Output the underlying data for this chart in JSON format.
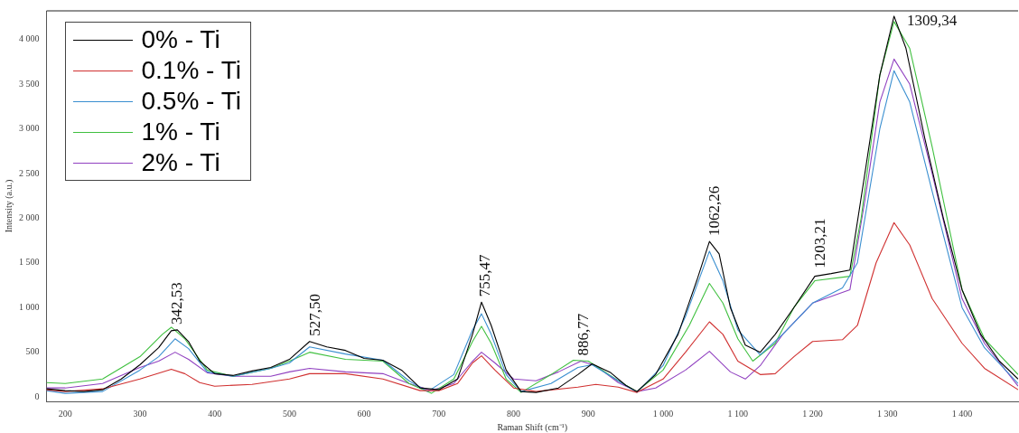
{
  "chart_data": {
    "type": "line",
    "xlabel": "Raman Shift (cm⁻¹)",
    "ylabel": "Intensity (a.u.)",
    "xlim": [
      175,
      1475
    ],
    "xticks": [
      200,
      300,
      400,
      500,
      600,
      700,
      800,
      900,
      {
        "value": 1000,
        "label": "1 000"
      },
      {
        "value": 1100,
        "label": "1 100"
      },
      {
        "value": 1200,
        "label": "1 200"
      },
      {
        "value": 1300,
        "label": "1 300"
      },
      {
        "value": 1400,
        "label": "1 400"
      }
    ],
    "ylim": [
      -50,
      4320
    ],
    "yticks": [
      0,
      500,
      {
        "value": 1000,
        "label": "1 000"
      },
      {
        "value": 1500,
        "label": "1 500"
      },
      {
        "value": 2000,
        "label": "2 000"
      },
      {
        "value": 2500,
        "label": "2 500"
      },
      {
        "value": 3000,
        "label": "3 000"
      },
      {
        "value": 3500,
        "label": "3 500"
      },
      {
        "value": 4000,
        "label": "4 000"
      }
    ],
    "grid": false,
    "legend": "top left",
    "marker": "none",
    "line_style": "solid",
    "series": [
      {
        "name": "0% - Ti",
        "color": "#000000",
        "x": [
          175,
          200,
          225,
          250,
          275,
          300,
          325,
          342,
          350,
          365,
          380,
          400,
          425,
          450,
          475,
          500,
          527,
          550,
          575,
          600,
          625,
          650,
          675,
          700,
          725,
          745,
          757,
          770,
          790,
          810,
          830,
          860,
          886,
          905,
          930,
          950,
          965,
          990,
          1020,
          1045,
          1062,
          1075,
          1090,
          1110,
          1130,
          1150,
          1175,
          1203,
          1225,
          1250,
          1270,
          1290,
          1309,
          1325,
          1350,
          1375,
          1400,
          1425,
          1450,
          1475
        ],
        "values": [
          90,
          70,
          60,
          80,
          200,
          360,
          550,
          740,
          750,
          620,
          400,
          260,
          240,
          290,
          330,
          420,
          620,
          560,
          520,
          430,
          410,
          300,
          100,
          80,
          200,
          700,
          1060,
          800,
          300,
          60,
          50,
          100,
          250,
          370,
          270,
          130,
          60,
          250,
          700,
          1300,
          1740,
          1600,
          1000,
          580,
          500,
          700,
          1000,
          1350,
          1380,
          1420,
          2500,
          3600,
          4260,
          3900,
          2900,
          2000,
          1200,
          700,
          400,
          200
        ]
      },
      {
        "name": "0.1% - Ti",
        "color": "#d03030",
        "x": [
          175,
          200,
          250,
          300,
          342,
          360,
          380,
          400,
          450,
          500,
          527,
          575,
          625,
          675,
          700,
          725,
          745,
          757,
          775,
          800,
          830,
          886,
          910,
          940,
          965,
          1000,
          1030,
          1062,
          1080,
          1100,
          1130,
          1150,
          1175,
          1200,
          1240,
          1260,
          1285,
          1309,
          1330,
          1360,
          1400,
          1430,
          1475
        ],
        "values": [
          80,
          60,
          90,
          200,
          310,
          260,
          160,
          120,
          140,
          200,
          260,
          260,
          200,
          70,
          70,
          150,
          380,
          460,
          300,
          100,
          60,
          110,
          140,
          110,
          50,
          200,
          500,
          840,
          700,
          400,
          250,
          260,
          450,
          620,
          640,
          800,
          1500,
          1950,
          1700,
          1100,
          600,
          320,
          80
        ]
      },
      {
        "name": "0.5% - Ti",
        "color": "#3a8fd0",
        "x": [
          175,
          200,
          250,
          300,
          325,
          347,
          365,
          390,
          425,
          475,
          500,
          527,
          575,
          625,
          660,
          685,
          720,
          745,
          757,
          770,
          790,
          810,
          850,
          886,
          905,
          940,
          965,
          1000,
          1030,
          1062,
          1080,
          1100,
          1130,
          1160,
          1200,
          1240,
          1260,
          1290,
          1309,
          1330,
          1360,
          1400,
          1430,
          1475
        ],
        "values": [
          70,
          40,
          60,
          300,
          450,
          650,
          540,
          280,
          230,
          320,
          380,
          560,
          480,
          410,
          180,
          60,
          250,
          750,
          930,
          700,
          250,
          60,
          150,
          330,
          360,
          180,
          50,
          350,
          900,
          1630,
          1300,
          750,
          470,
          700,
          1050,
          1220,
          1500,
          3000,
          3650,
          3300,
          2300,
          1000,
          550,
          150
        ]
      },
      {
        "name": "1% - Ti",
        "color": "#40c040",
        "x": [
          175,
          200,
          250,
          300,
          330,
          342,
          360,
          390,
          425,
          475,
          500,
          527,
          575,
          625,
          660,
          690,
          720,
          745,
          757,
          770,
          790,
          810,
          850,
          880,
          900,
          940,
          965,
          1000,
          1035,
          1062,
          1080,
          1100,
          1120,
          1150,
          1175,
          1203,
          1250,
          1265,
          1290,
          1309,
          1330,
          1360,
          1400,
          1430,
          1475
        ],
        "values": [
          160,
          150,
          200,
          450,
          700,
          780,
          650,
          300,
          230,
          320,
          400,
          500,
          420,
          400,
          150,
          40,
          200,
          620,
          790,
          600,
          200,
          50,
          250,
          410,
          400,
          180,
          60,
          300,
          800,
          1270,
          1050,
          650,
          400,
          600,
          1000,
          1300,
          1350,
          2000,
          3600,
          4200,
          3900,
          2800,
          1200,
          650,
          250
        ]
      },
      {
        "name": "2% - Ti",
        "color": "#9040c0",
        "x": [
          175,
          200,
          250,
          300,
          325,
          347,
          365,
          390,
          425,
          475,
          500,
          527,
          575,
          625,
          660,
          690,
          720,
          745,
          757,
          775,
          800,
          830,
          860,
          890,
          910,
          940,
          965,
          990,
          1030,
          1062,
          1090,
          1110,
          1130,
          1160,
          1200,
          1250,
          1270,
          1290,
          1309,
          1330,
          1360,
          1400,
          1430,
          1475
        ],
        "values": [
          100,
          100,
          150,
          330,
          400,
          500,
          420,
          270,
          230,
          230,
          280,
          320,
          280,
          260,
          150,
          70,
          150,
          400,
          500,
          380,
          200,
          180,
          280,
          400,
          350,
          160,
          60,
          100,
          300,
          510,
          280,
          200,
          350,
          700,
          1050,
          1200,
          2200,
          3300,
          3780,
          3500,
          2500,
          1100,
          600,
          120
        ]
      }
    ],
    "annotations": [
      {
        "text": "342,53",
        "x": 342.53,
        "y": 750
      },
      {
        "text": "527,50",
        "x": 527.5,
        "y": 620
      },
      {
        "text": "755,47",
        "x": 755.47,
        "y": 1060
      },
      {
        "text": "886,77",
        "x": 886.77,
        "y": 400
      },
      {
        "text": "1062,26",
        "x": 1062.26,
        "y": 1740
      },
      {
        "text": "1203,21",
        "x": 1203.21,
        "y": 1380
      },
      {
        "text": "1309,34",
        "x": 1309.34,
        "y": 4260
      }
    ]
  }
}
